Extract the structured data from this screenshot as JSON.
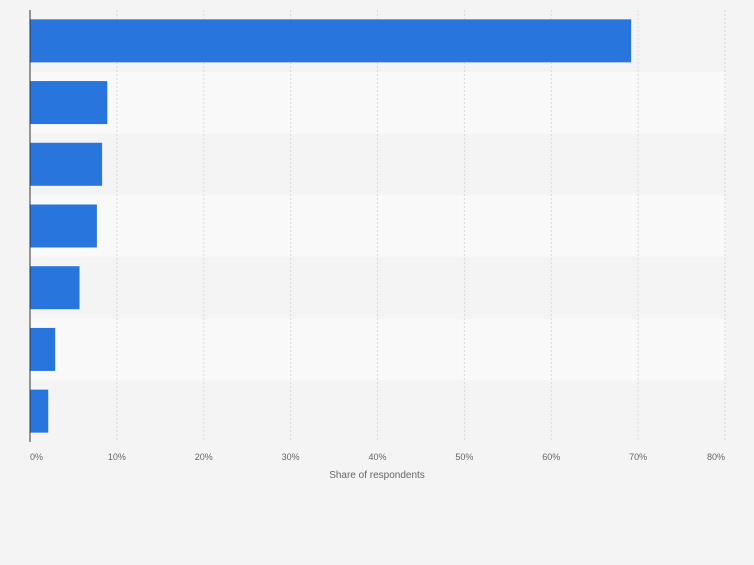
{
  "chart_data": {
    "type": "bar",
    "orientation": "horizontal",
    "categories": [
      "",
      "",
      "",
      "",
      "",
      "",
      ""
    ],
    "values": [
      69.2,
      8.9,
      8.3,
      7.7,
      5.7,
      2.9,
      2.1
    ],
    "xlim": [
      0,
      80
    ],
    "xticks": [
      "0%",
      "10%",
      "20%",
      "30%",
      "40%",
      "50%",
      "60%",
      "70%",
      "80%"
    ],
    "xlabel": "Share of respondents",
    "ylabel": "",
    "title": "",
    "grid": true,
    "bar_color": "#2876dd",
    "row_colors": [
      "#f4f4f4",
      "#f9f9f9"
    ]
  }
}
